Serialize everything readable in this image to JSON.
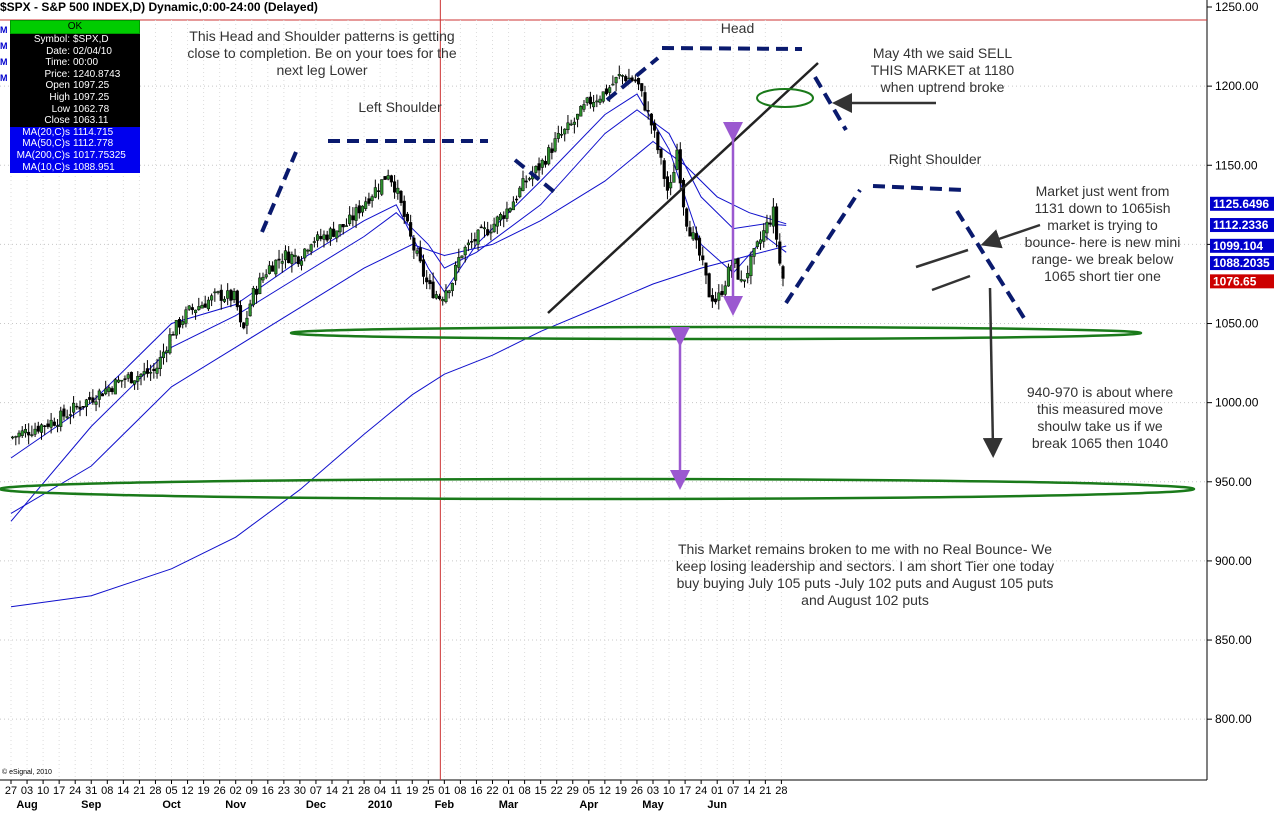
{
  "title": "$SPX - S&P 500 INDEX,D) Dynamic,0:00-24:00 (Delayed)",
  "copyright": "© eSignal, 2010",
  "side_marks": [
    "M",
    "M",
    "M",
    "M"
  ],
  "info_box": {
    "status": "OK",
    "rows": [
      {
        "k": "Symbol:",
        "v": "$SPX,D"
      },
      {
        "k": "Date:",
        "v": "02/04/10"
      },
      {
        "k": "Time:",
        "v": "00:00"
      },
      {
        "k": "Price:",
        "v": "1240.8743"
      },
      {
        "k": "Open",
        "v": "1097.25"
      },
      {
        "k": "High",
        "v": "1097.25"
      },
      {
        "k": "Low",
        "v": "1062.78"
      },
      {
        "k": "Close",
        "v": "1063.11"
      }
    ],
    "ma_rows": [
      {
        "k": "MA(20,C)s",
        "v": "1114.715"
      },
      {
        "k": "MA(50,C)s",
        "v": "1112.778"
      },
      {
        "k": "MA(200,C)s",
        "v": "1017.75325"
      },
      {
        "k": "MA(10,C)s",
        "v": "1088.951"
      }
    ]
  },
  "annotations": {
    "head_shoulders": "This Head and Shoulder patterns is getting\nclose to completion.  Be on your toes for the\nnext leg Lower",
    "left_shoulder": "Left Shoulder",
    "head": "Head",
    "right_shoulder": "Right Shoulder",
    "may4": "May 4th we said SELL\nTHIS MARKET at 1180\nwhen uptrend broke",
    "market_went": "Market just went from\n1131 down to 1065ish\nmarket is trying to\nbounce- here is new mini\nrange- we break below\n1065 short tier one",
    "measured_move": "940-970 is about where\nthis measured move\nshoulw take us if we\nbreak 1065 then 1040",
    "remains_broken": "This Market remains broken to me with no Real Bounce- We\nkeep losing leadership and sectors.  I am short Tier one today\nbuy buying July 105 puts -July 102 puts and August 105 puts\nand August 102 puts"
  },
  "chart_data": {
    "type": "candlestick",
    "symbol": "$SPX",
    "ylim": [
      750,
      1250
    ],
    "y_ticks": [
      "1250.00",
      "1200.00",
      "1150.00",
      "1100.00",
      "1050.00",
      "1000.00",
      "950.00",
      "900.00",
      "850.00",
      "800.00"
    ],
    "y_tick_values": [
      1250,
      1200,
      1150,
      1100,
      1050,
      1000,
      950,
      900,
      850,
      800
    ],
    "price_tags": [
      {
        "label": "1125.6496",
        "value": 1125.65,
        "color": "#0000cc"
      },
      {
        "label": "1112.2336",
        "value": 1112.23,
        "color": "#0000cc"
      },
      {
        "label": "1099.104",
        "value": 1099.1,
        "color": "#0000cc"
      },
      {
        "label": "1088.2035",
        "value": 1088.2,
        "color": "#0000cc"
      },
      {
        "label": "1076.65",
        "value": 1076.65,
        "color": "#cc0000"
      }
    ],
    "day_labels": [
      "27",
      "03",
      "10",
      "17",
      "24",
      "31",
      "08",
      "14",
      "21",
      "28",
      "05",
      "12",
      "19",
      "26",
      "02",
      "09",
      "16",
      "23",
      "30",
      "07",
      "14",
      "21",
      "28",
      "04",
      "11",
      "19",
      "25",
      "01",
      "08",
      "16",
      "22",
      "01",
      "08",
      "15",
      "22",
      "29",
      "05",
      "12",
      "19",
      "26",
      "03",
      "10",
      "17",
      "24",
      "01",
      "07",
      "14",
      "21",
      "28"
    ],
    "month_labels": [
      {
        "label": "Aug",
        "day_index": 1
      },
      {
        "label": "Sep",
        "day_index": 5
      },
      {
        "label": "Oct",
        "day_index": 10
      },
      {
        "label": "Nov",
        "day_index": 14
      },
      {
        "label": "Dec",
        "day_index": 19
      },
      {
        "label": "2010",
        "day_index": 23
      },
      {
        "label": "Feb",
        "day_index": 27
      },
      {
        "label": "Mar",
        "day_index": 31
      },
      {
        "label": "Apr",
        "day_index": 36
      },
      {
        "label": "May",
        "day_index": 40
      },
      {
        "label": "Jun",
        "day_index": 44
      }
    ],
    "close_path": [
      [
        0,
        978
      ],
      [
        3,
        990
      ],
      [
        5,
        1003
      ],
      [
        7,
        1015
      ],
      [
        9,
        1020
      ],
      [
        10,
        1044
      ],
      [
        11,
        1057
      ],
      [
        12,
        1063
      ],
      [
        13,
        1068
      ],
      [
        14,
        1066
      ],
      [
        14.4,
        1042
      ],
      [
        15,
        1067
      ],
      [
        16,
        1085
      ],
      [
        17,
        1093
      ],
      [
        18,
        1092
      ],
      [
        18.8,
        1105
      ],
      [
        19,
        1102
      ],
      [
        20,
        1108
      ],
      [
        21,
        1113
      ],
      [
        22,
        1127
      ],
      [
        23,
        1138
      ],
      [
        23.5,
        1146
      ],
      [
        24,
        1135
      ],
      [
        25,
        1100
      ],
      [
        26,
        1073
      ],
      [
        26.8,
        1066
      ],
      [
        27,
        1071
      ],
      [
        27.5,
        1077
      ],
      [
        28,
        1094
      ],
      [
        29,
        1104
      ],
      [
        30,
        1112
      ],
      [
        31,
        1123
      ],
      [
        32,
        1139
      ],
      [
        33,
        1150
      ],
      [
        34,
        1166
      ],
      [
        35,
        1176
      ],
      [
        36,
        1190
      ],
      [
        37,
        1196
      ],
      [
        38,
        1207
      ],
      [
        39,
        1203
      ],
      [
        40,
        1173
      ],
      [
        41,
        1130
      ],
      [
        41.5,
        1160
      ],
      [
        42,
        1118
      ],
      [
        43,
        1090
      ],
      [
        43.5,
        1069
      ],
      [
        44,
        1064
      ],
      [
        45,
        1090
      ],
      [
        45.5,
        1075
      ],
      [
        46,
        1086
      ],
      [
        47,
        1110
      ],
      [
        47.5,
        1120
      ],
      [
        48,
        1080
      ],
      [
        48.3,
        1076
      ]
    ],
    "moving_averages": [
      {
        "name": "MA(10,C)s",
        "value": 1088.951,
        "path": [
          [
            0,
            965
          ],
          [
            5,
            1000
          ],
          [
            10,
            1050
          ],
          [
            14,
            1062
          ],
          [
            18,
            1090
          ],
          [
            22,
            1115
          ],
          [
            24,
            1125
          ],
          [
            26,
            1085
          ],
          [
            27,
            1070
          ],
          [
            29,
            1100
          ],
          [
            33,
            1140
          ],
          [
            37,
            1182
          ],
          [
            39,
            1195
          ],
          [
            41,
            1160
          ],
          [
            43,
            1100
          ],
          [
            45,
            1082
          ],
          [
            47,
            1105
          ],
          [
            48.3,
            1095
          ]
        ]
      },
      {
        "name": "MA(20,C)s",
        "value": 1114.715,
        "path": [
          [
            0,
            925
          ],
          [
            5,
            985
          ],
          [
            10,
            1035
          ],
          [
            14,
            1055
          ],
          [
            18,
            1080
          ],
          [
            22,
            1105
          ],
          [
            24,
            1120
          ],
          [
            26,
            1100
          ],
          [
            27,
            1085
          ],
          [
            29,
            1095
          ],
          [
            33,
            1125
          ],
          [
            37,
            1170
          ],
          [
            39,
            1185
          ],
          [
            41,
            1170
          ],
          [
            43,
            1130
          ],
          [
            45,
            1110
          ],
          [
            47,
            1113
          ],
          [
            48.3,
            1112
          ]
        ]
      },
      {
        "name": "MA(50,C)s",
        "value": 1112.778,
        "path": [
          [
            0,
            930
          ],
          [
            5,
            960
          ],
          [
            10,
            1010
          ],
          [
            14,
            1035
          ],
          [
            18,
            1060
          ],
          [
            22,
            1085
          ],
          [
            25,
            1100
          ],
          [
            27,
            1093
          ],
          [
            30,
            1100
          ],
          [
            33,
            1115
          ],
          [
            37,
            1140
          ],
          [
            40,
            1165
          ],
          [
            42,
            1150
          ],
          [
            44,
            1130
          ],
          [
            46,
            1120
          ],
          [
            48.3,
            1113
          ]
        ]
      },
      {
        "name": "MA(200,C)s",
        "value": 1017.75325,
        "path": [
          [
            0,
            871
          ],
          [
            5,
            878
          ],
          [
            10,
            895
          ],
          [
            14,
            915
          ],
          [
            18,
            945
          ],
          [
            22,
            980
          ],
          [
            25,
            1005
          ],
          [
            27,
            1018
          ],
          [
            30,
            1030
          ],
          [
            33,
            1045
          ],
          [
            37,
            1062
          ],
          [
            40,
            1075
          ],
          [
            43,
            1085
          ],
          [
            46,
            1093
          ],
          [
            48.3,
            1099
          ]
        ]
      }
    ]
  }
}
